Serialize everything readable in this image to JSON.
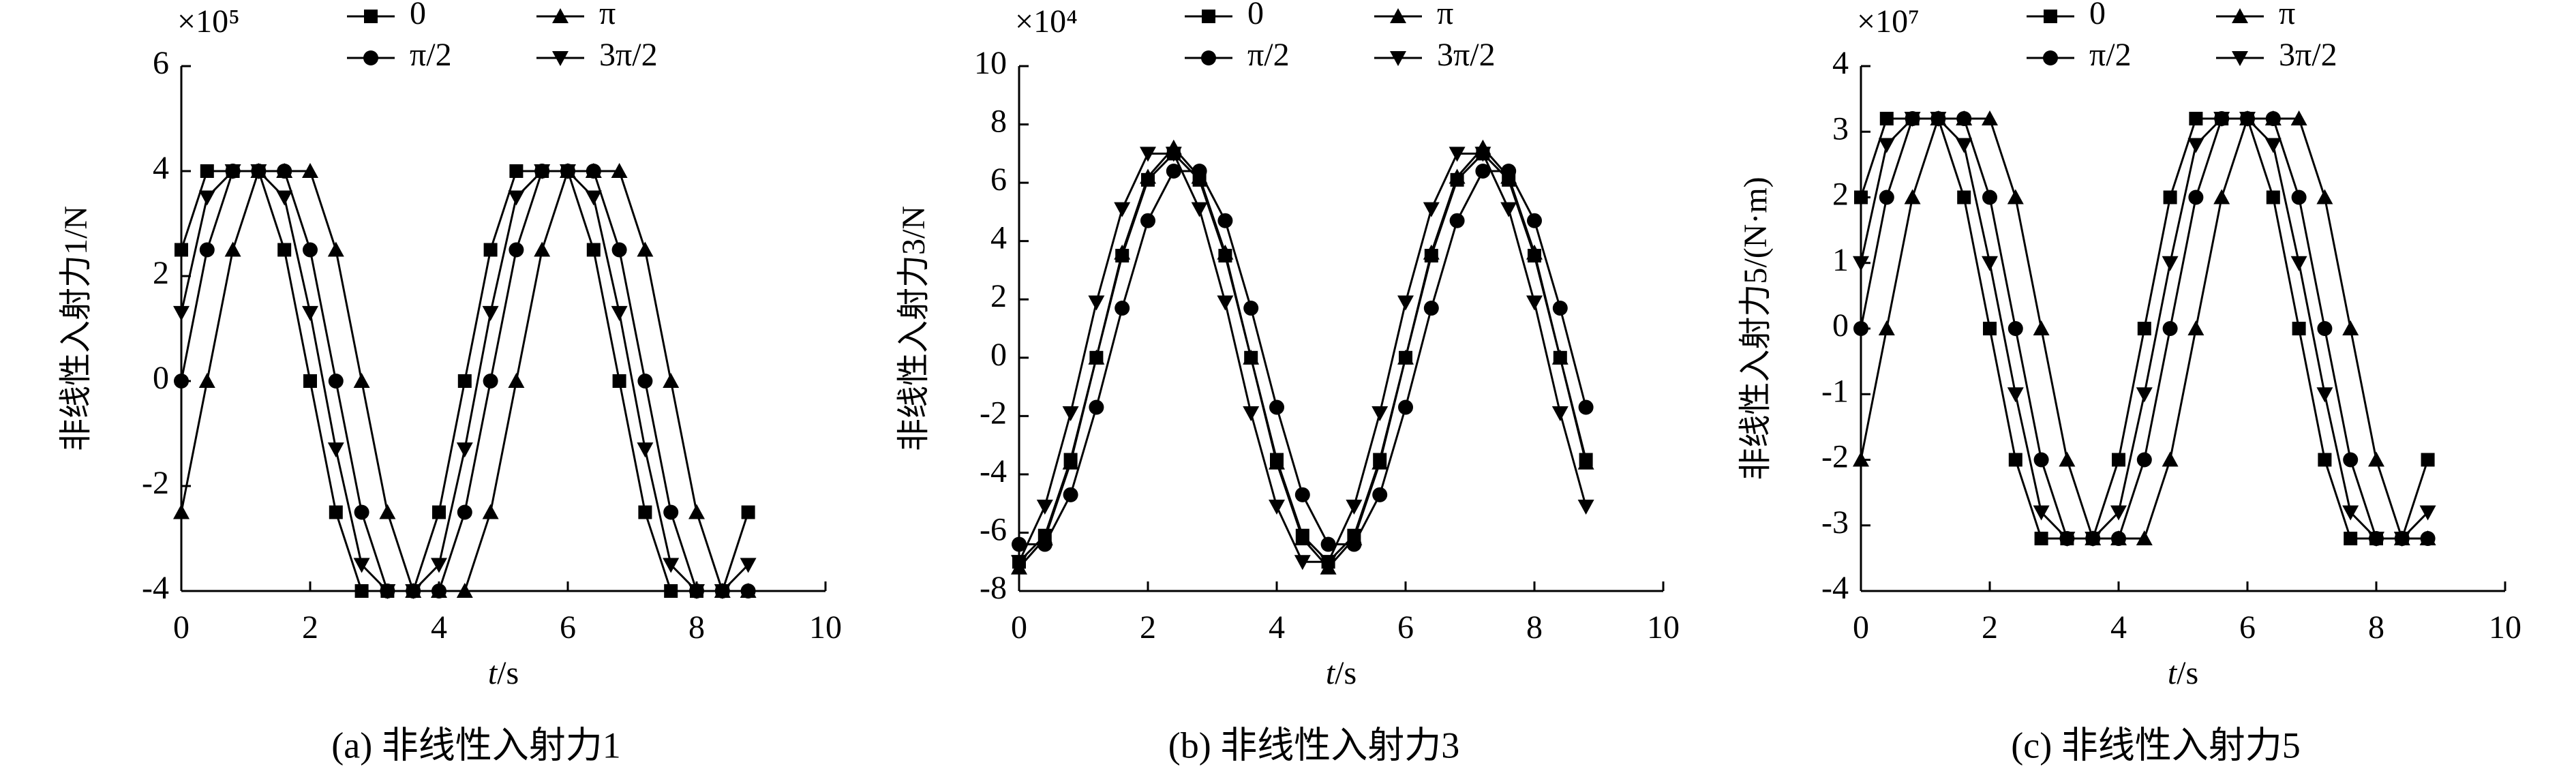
{
  "chart_data": [
    {
      "type": "line",
      "y_multiplier": "×10⁵",
      "ylabel": "非线性入射力1/N",
      "xlabel": "t/s",
      "caption": "(a) 非线性入射力1",
      "x": [
        0,
        0.4,
        0.8,
        1.2,
        1.6,
        2,
        2.4,
        2.8,
        3.2,
        3.6,
        4,
        4.4,
        4.8,
        5.2,
        5.6,
        6,
        6.4,
        6.8,
        7.2,
        7.6,
        8,
        8.4,
        8.8
      ],
      "xlim": [
        0,
        10
      ],
      "xticks": [
        0,
        2,
        4,
        6,
        8,
        10
      ],
      "ylim": [
        -4,
        6
      ],
      "yticks": [
        -4,
        -2,
        0,
        2,
        4,
        6
      ],
      "series": [
        {
          "name": "0",
          "color": "#000000",
          "marker": "square",
          "values": [
            2.5,
            4,
            4,
            4,
            2.5,
            0,
            -2.5,
            -4,
            -4,
            -4,
            -2.5,
            0,
            2.5,
            4,
            4,
            4,
            2.5,
            0,
            -2.5,
            -4,
            -4,
            -4,
            -2.5
          ]
        },
        {
          "name": "π/2",
          "color": "#000000",
          "marker": "circle",
          "values": [
            0,
            2.5,
            4,
            4,
            4,
            2.5,
            0,
            -2.5,
            -4,
            -4,
            -4,
            -2.5,
            0,
            2.5,
            4,
            4,
            4,
            2.5,
            0,
            -2.5,
            -4,
            -4,
            -4
          ]
        },
        {
          "name": "π",
          "color": "#000000",
          "marker": "triangle-up",
          "values": [
            -2.5,
            0,
            2.5,
            4,
            4,
            4,
            2.5,
            0,
            -2.5,
            -4,
            -4,
            -4,
            -2.5,
            0,
            2.5,
            4,
            4,
            4,
            2.5,
            0,
            -2.5,
            -4,
            -4
          ]
        },
        {
          "name": "3π/2",
          "color": "#000000",
          "marker": "triangle-down",
          "values": [
            1.3,
            3.5,
            4,
            4,
            3.5,
            1.3,
            -1.3,
            -3.5,
            -4,
            -4,
            -3.5,
            -1.3,
            1.3,
            3.5,
            4,
            4,
            3.5,
            1.3,
            -1.3,
            -3.5,
            -4,
            -4,
            -3.5
          ]
        }
      ]
    },
    {
      "type": "line",
      "y_multiplier": "×10⁴",
      "ylabel": "非线性入射力3/N",
      "xlabel": "t/s",
      "caption": "(b) 非线性入射力3",
      "x": [
        0,
        0.4,
        0.8,
        1.2,
        1.6,
        2,
        2.4,
        2.8,
        3.2,
        3.6,
        4,
        4.4,
        4.8,
        5.2,
        5.6,
        6,
        6.4,
        6.8,
        7.2,
        7.6,
        8,
        8.4,
        8.8
      ],
      "xlim": [
        0,
        10
      ],
      "xticks": [
        0,
        2,
        4,
        6,
        8,
        10
      ],
      "ylim": [
        -8,
        10
      ],
      "yticks": [
        -8,
        -6,
        -4,
        -2,
        0,
        2,
        4,
        6,
        8,
        10
      ],
      "series": [
        {
          "name": "0",
          "color": "#000000",
          "marker": "square",
          "values": [
            -7,
            -6.1,
            -3.5,
            0,
            3.5,
            6.1,
            7,
            6.1,
            3.5,
            0,
            -3.5,
            -6.1,
            -7,
            -6.1,
            -3.5,
            0,
            3.5,
            6.1,
            7,
            6.1,
            3.5,
            0,
            -3.5
          ]
        },
        {
          "name": "π/2",
          "color": "#000000",
          "marker": "circle",
          "values": [
            -6.4,
            -6.4,
            -4.7,
            -1.7,
            1.7,
            4.7,
            6.4,
            6.4,
            4.7,
            1.7,
            -1.7,
            -4.7,
            -6.4,
            -6.4,
            -4.7,
            -1.7,
            1.7,
            4.7,
            6.4,
            6.4,
            4.7,
            1.7,
            -1.7
          ]
        },
        {
          "name": "π",
          "color": "#000000",
          "marker": "triangle-up",
          "values": [
            -7.2,
            -6.2,
            -3.6,
            0,
            3.6,
            6.2,
            7.2,
            6.2,
            3.6,
            0,
            -3.6,
            -6.2,
            -7.2,
            -6.2,
            -3.6,
            0,
            3.6,
            6.2,
            7.2,
            6.2,
            3.6,
            0,
            -3.6
          ]
        },
        {
          "name": "3π/2",
          "color": "#000000",
          "marker": "triangle-down",
          "values": [
            -7,
            -5.1,
            -1.9,
            1.9,
            5.1,
            7,
            7,
            5.1,
            1.9,
            -1.9,
            -5.1,
            -7,
            -7,
            -5.1,
            -1.9,
            1.9,
            5.1,
            7,
            7,
            5.1,
            1.9,
            -1.9,
            -5.1
          ]
        }
      ]
    },
    {
      "type": "line",
      "y_multiplier": "×10⁷",
      "ylabel": "非线性入射力5/(N·m)",
      "xlabel": "t/s",
      "caption": "(c) 非线性入射力5",
      "x": [
        0,
        0.4,
        0.8,
        1.2,
        1.6,
        2,
        2.4,
        2.8,
        3.2,
        3.6,
        4,
        4.4,
        4.8,
        5.2,
        5.6,
        6,
        6.4,
        6.8,
        7.2,
        7.6,
        8,
        8.4,
        8.8
      ],
      "xlim": [
        0,
        10
      ],
      "xticks": [
        0,
        2,
        4,
        6,
        8,
        10
      ],
      "ylim": [
        -4,
        4
      ],
      "yticks": [
        -4,
        -3,
        -2,
        -1,
        0,
        1,
        2,
        3,
        4
      ],
      "series": [
        {
          "name": "0",
          "color": "#000000",
          "marker": "square",
          "values": [
            2,
            3.2,
            3.2,
            3.2,
            2,
            0,
            -2,
            -3.2,
            -3.2,
            -3.2,
            -2,
            0,
            2,
            3.2,
            3.2,
            3.2,
            2,
            0,
            -2,
            -3.2,
            -3.2,
            -3.2,
            -2
          ]
        },
        {
          "name": "π/2",
          "color": "#000000",
          "marker": "circle",
          "values": [
            0,
            2,
            3.2,
            3.2,
            3.2,
            2,
            0,
            -2,
            -3.2,
            -3.2,
            -3.2,
            -2,
            0,
            2,
            3.2,
            3.2,
            3.2,
            2,
            0,
            -2,
            -3.2,
            -3.2,
            -3.2
          ]
        },
        {
          "name": "π",
          "color": "#000000",
          "marker": "triangle-up",
          "values": [
            -2,
            0,
            2,
            3.2,
            3.2,
            3.2,
            2,
            0,
            -2,
            -3.2,
            -3.2,
            -3.2,
            -2,
            0,
            2,
            3.2,
            3.2,
            3.2,
            2,
            0,
            -2,
            -3.2,
            -3.2
          ]
        },
        {
          "name": "3π/2",
          "color": "#000000",
          "marker": "triangle-down",
          "values": [
            1,
            2.8,
            3.2,
            3.2,
            2.8,
            1,
            -1,
            -2.8,
            -3.2,
            -3.2,
            -2.8,
            -1,
            1,
            2.8,
            3.2,
            3.2,
            2.8,
            1,
            -1,
            -2.8,
            -3.2,
            -3.2,
            -2.8
          ]
        }
      ]
    }
  ]
}
